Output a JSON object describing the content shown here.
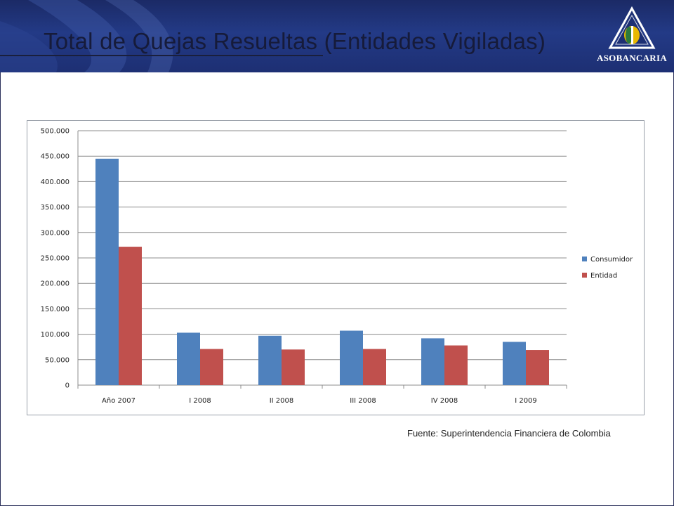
{
  "slide": {
    "title": "Total de Quejas Resueltas (Entidades Vigiladas)",
    "source": "Fuente: Superintendencia Financiera de Colombia",
    "logo_text": "ASOBANCARIA"
  },
  "colors": {
    "header_bg": "#1d2f73",
    "consumidor": "#4f81bd",
    "entidad": "#c0504d",
    "gridline": "#8c8c8c"
  },
  "chart_data": {
    "type": "bar",
    "categories": [
      "Año 2007",
      "I 2008",
      "II 2008",
      "III 2008",
      "IV 2008",
      "I 2009"
    ],
    "series": [
      {
        "name": "Consumidor",
        "values": [
          445000,
          103000,
          97000,
          107000,
          92000,
          85000
        ]
      },
      {
        "name": "Entidad",
        "values": [
          272000,
          71000,
          70000,
          71000,
          78000,
          69000
        ]
      }
    ],
    "yticks": [
      "0",
      "50.000",
      "100.000",
      "150.000",
      "200.000",
      "250.000",
      "300.000",
      "350.000",
      "400.000",
      "450.000",
      "500.000"
    ],
    "ylim": [
      0,
      500000
    ],
    "grid": true,
    "legend_position": "right"
  }
}
